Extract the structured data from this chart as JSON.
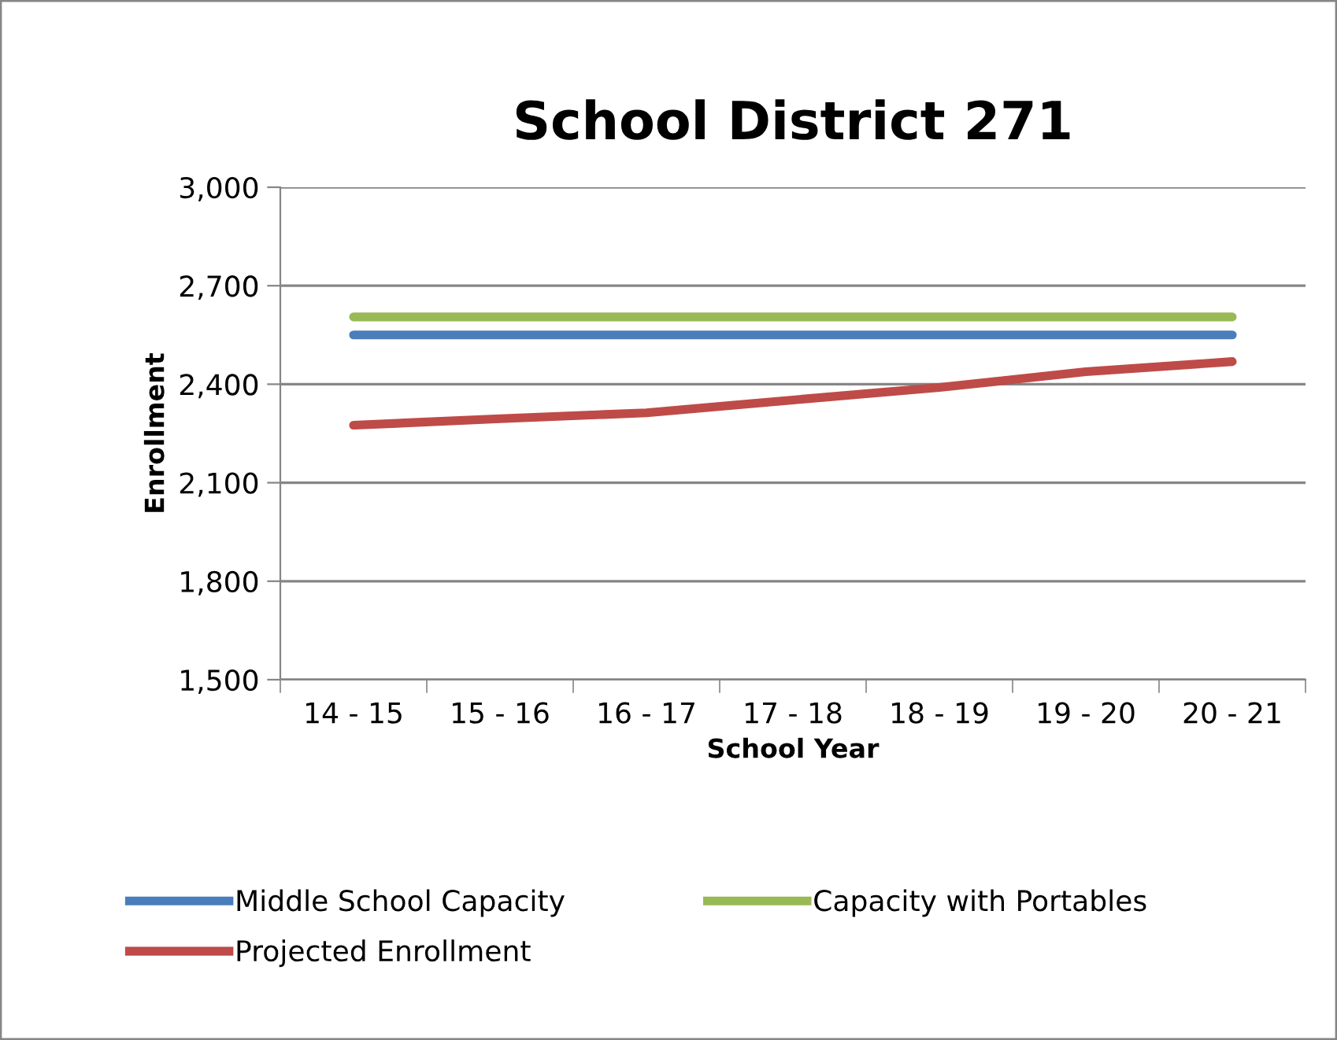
{
  "chart_data": {
    "type": "line",
    "title": "School District 271",
    "xlabel": "School Year",
    "ylabel": "Enrollment",
    "categories": [
      "14 - 15",
      "15 - 16",
      "16 - 17",
      "17 - 18",
      "18 - 19",
      "19 - 20",
      "20 - 21"
    ],
    "series": [
      {
        "name": "Middle School Capacity",
        "color": "#4a7ebb",
        "values": [
          2550,
          2550,
          2550,
          2550,
          2550,
          2550,
          2550
        ]
      },
      {
        "name": "Projected Enrollment",
        "color": "#be4b48",
        "values": [
          2275,
          2295,
          2313,
          2352,
          2390,
          2438,
          2469
        ]
      },
      {
        "name": "Capacity with Portables",
        "color": "#98b954",
        "values": [
          2605,
          2605,
          2605,
          2605,
          2605,
          2605,
          2605
        ]
      }
    ],
    "ylim": [
      1500,
      3000
    ],
    "yticks": [
      {
        "value": 1500,
        "label": "1,500"
      },
      {
        "value": 1800,
        "label": "1,800"
      },
      {
        "value": 2100,
        "label": "2,100"
      },
      {
        "value": 2400,
        "label": "2,400"
      },
      {
        "value": 2700,
        "label": "2,700"
      },
      {
        "value": 3000,
        "label": "3,000"
      }
    ],
    "grid": "y",
    "legend": "bottom",
    "marker": "none",
    "line_style": "solid"
  }
}
